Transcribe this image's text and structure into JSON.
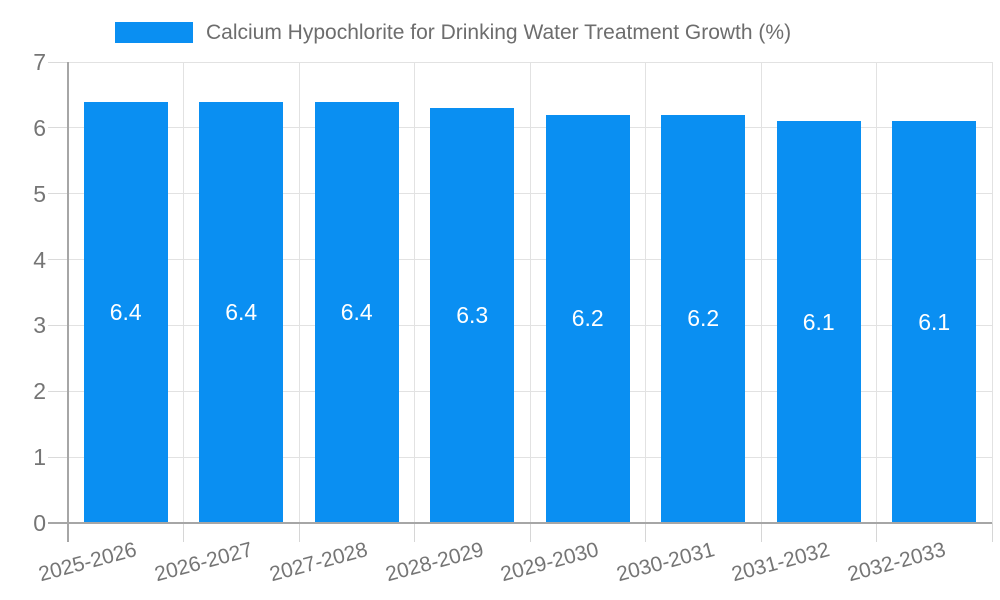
{
  "legend": {
    "label": "Calcium Hypochlorite for Drinking Water Treatment Growth (%)"
  },
  "chart_data": {
    "type": "bar",
    "title": "Calcium Hypochlorite for Drinking Water Treatment Growth (%)",
    "categories": [
      "2025-2026",
      "2026-2027",
      "2027-2028",
      "2028-2029",
      "2029-2030",
      "2030-2031",
      "2031-2032",
      "2032-2033"
    ],
    "values": [
      6.4,
      6.4,
      6.4,
      6.3,
      6.2,
      6.2,
      6.1,
      6.1
    ],
    "bar_labels": [
      "6.4",
      "6.4",
      "6.4",
      "6.3",
      "6.2",
      "6.2",
      "6.1",
      "6.1"
    ],
    "xlabel": "",
    "ylabel": "",
    "ylim": [
      0,
      7
    ],
    "yticks": [
      0,
      1,
      2,
      3,
      4,
      5,
      6,
      7
    ],
    "grid": true,
    "legend_position": "top",
    "x_tick_label_rotation_deg": -15,
    "colors": {
      "bar": "#0a8ff2",
      "value_label": "#ffffff",
      "axis_labels": "#757575",
      "legend_text": "#6d6d6d",
      "gridline": "#e2e2e2",
      "axis_line": "#a6a6a6",
      "background": "#ffffff"
    }
  }
}
